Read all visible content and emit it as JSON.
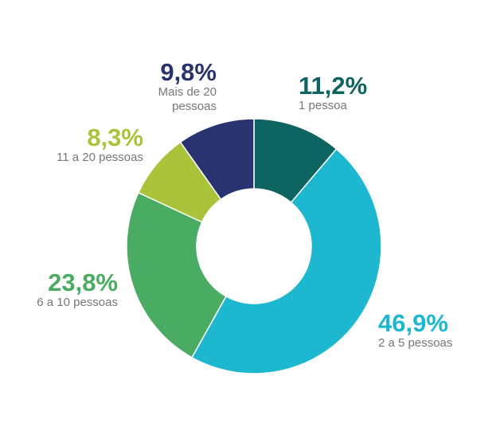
{
  "chart_data": {
    "type": "donut",
    "categories": [
      "1 pessoa",
      "2 a 5 pessoas",
      "6 a 10 pessoas",
      "11 a 20 pessoas",
      "Mais de 20 pessoas"
    ],
    "values": [
      11.2,
      46.9,
      23.8,
      8.3,
      9.8
    ],
    "value_labels": [
      "11,2%",
      "46,9%",
      "23,8%",
      "8,3%",
      "9,8%"
    ],
    "colors": [
      "#0e6461",
      "#1db7cf",
      "#4aac62",
      "#a9c43a",
      "#29336f"
    ]
  }
}
